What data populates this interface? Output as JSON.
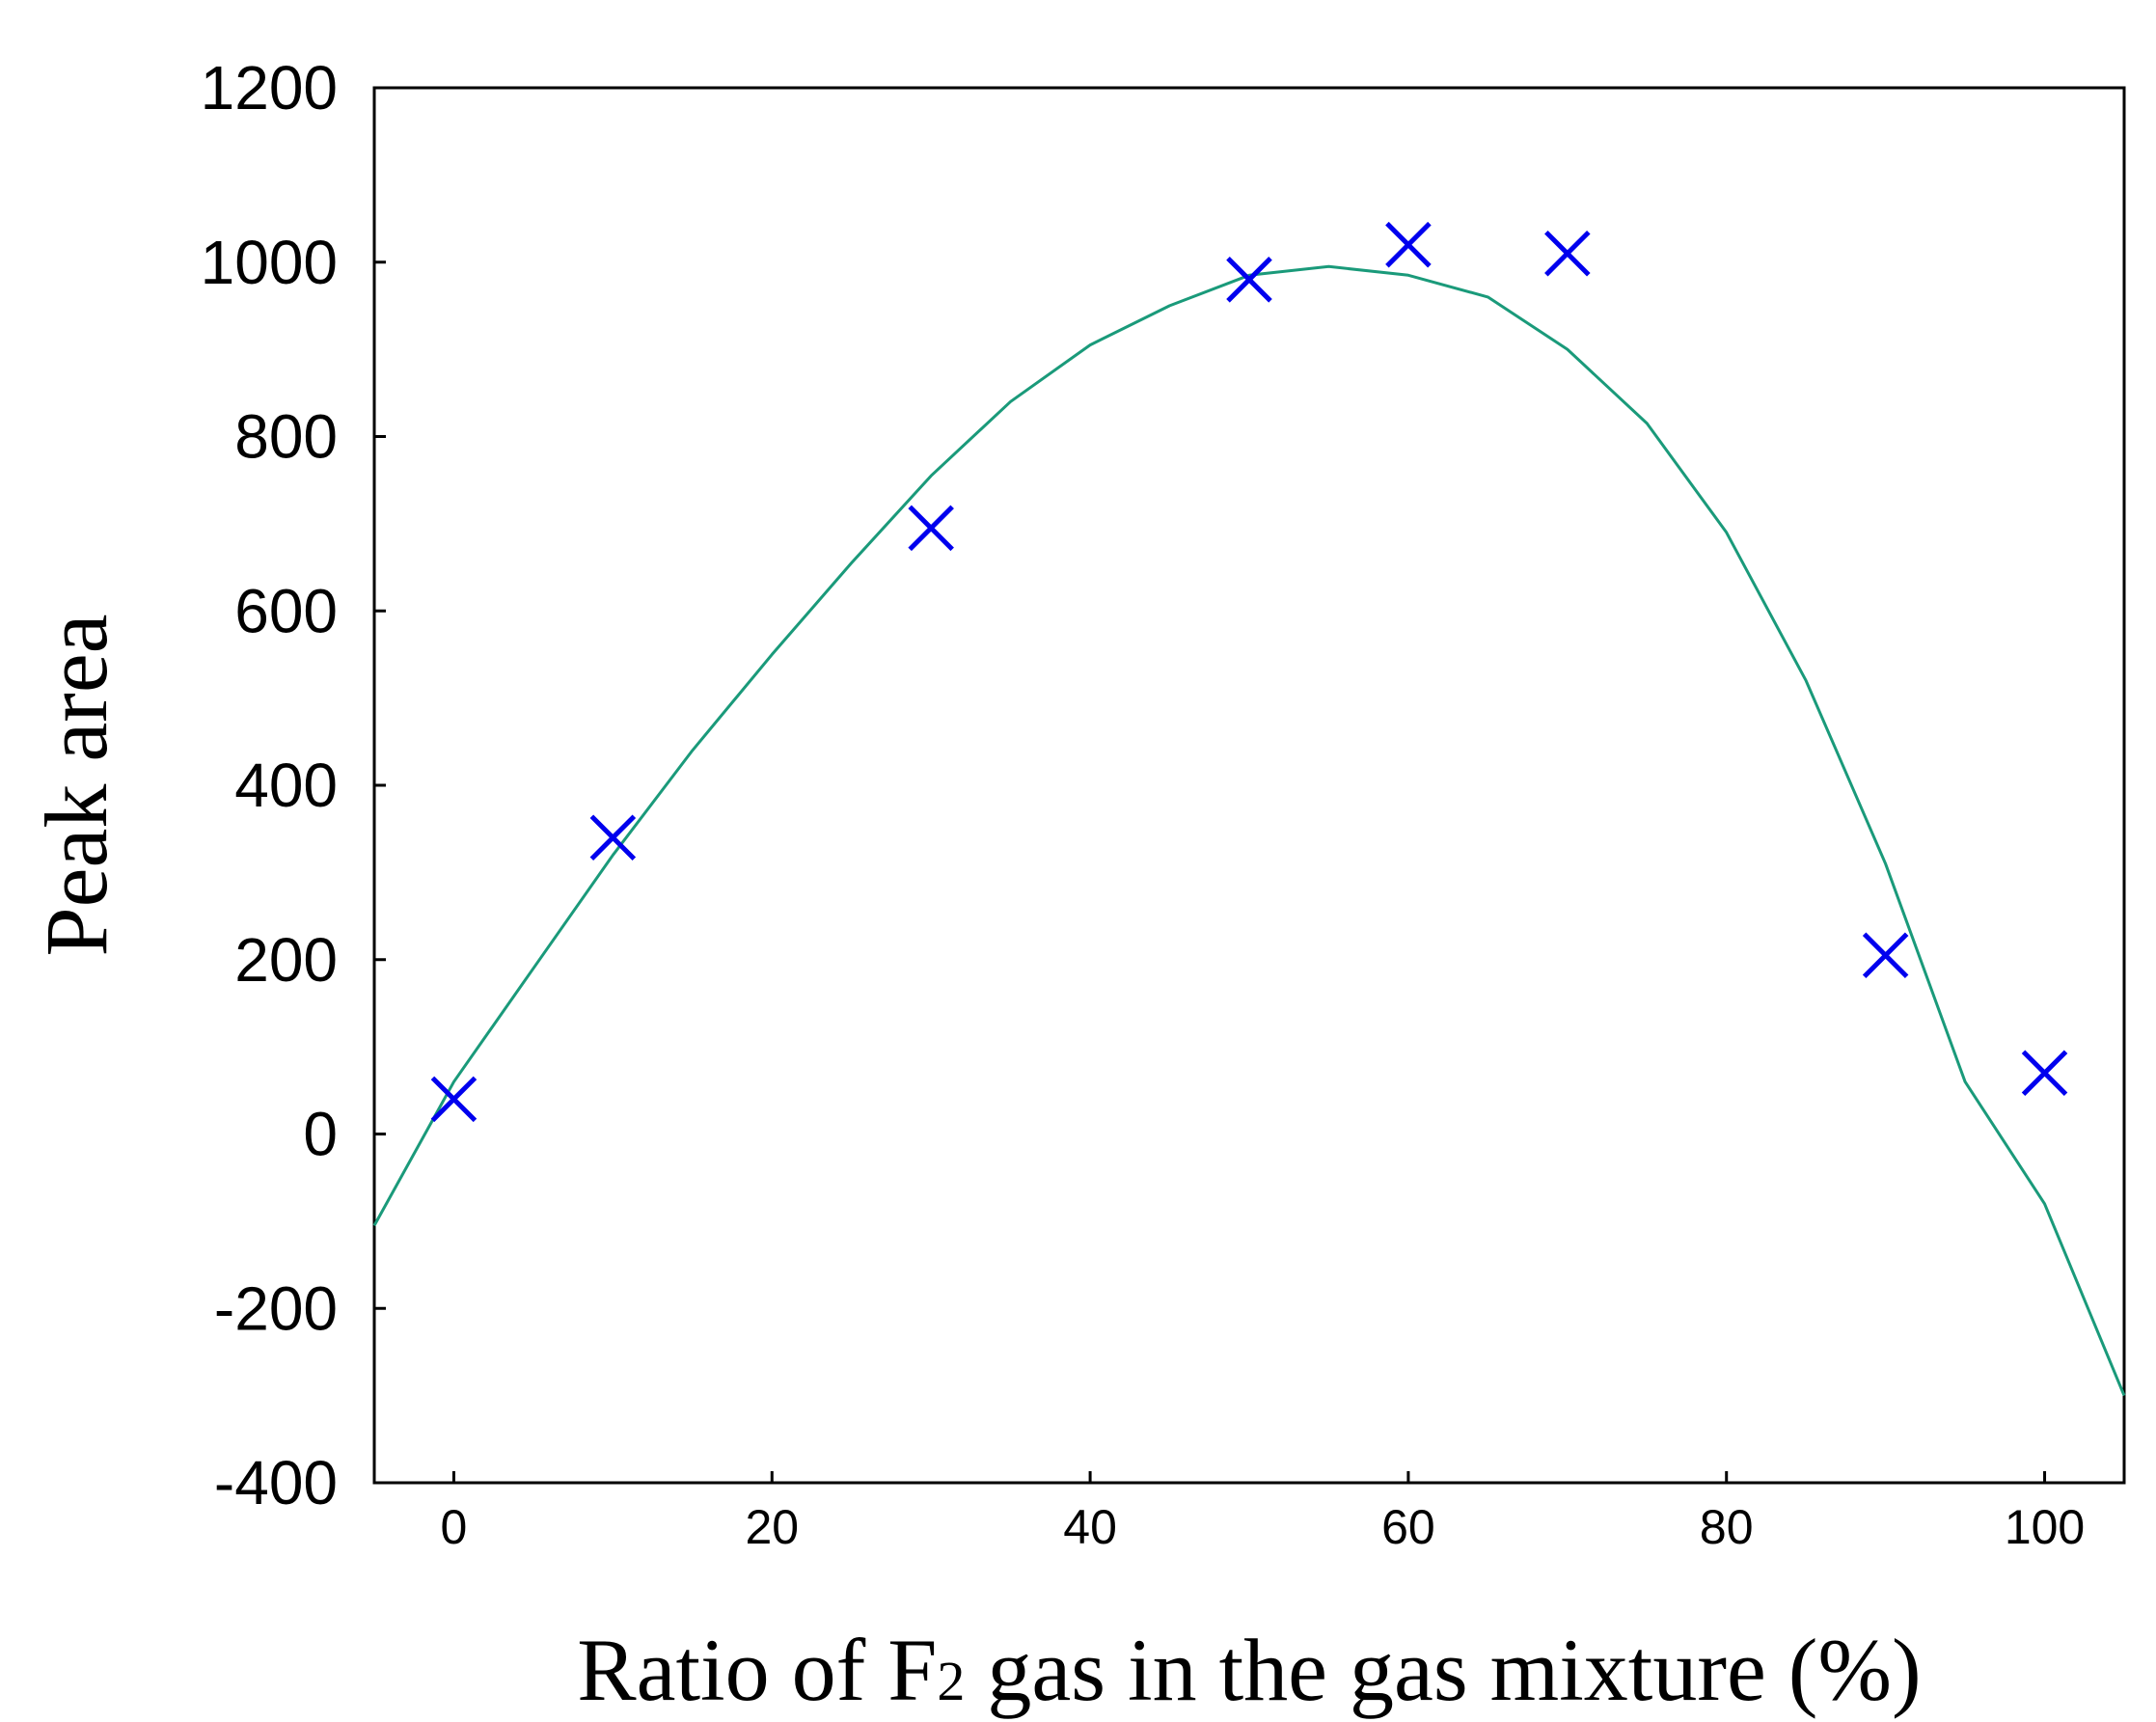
{
  "chart_data": {
    "type": "scatter",
    "xlabel_main": "Ratio of F",
    "xlabel_sub": "2",
    "xlabel_rest": " gas in the gas mixture (%)",
    "ylabel": "Peak area",
    "xlim": [
      -5,
      105
    ],
    "ylim": [
      -400,
      1200
    ],
    "x_ticks": [
      0,
      20,
      40,
      60,
      80,
      100
    ],
    "y_ticks": [
      -400,
      -200,
      0,
      200,
      400,
      600,
      800,
      1000,
      1200
    ],
    "grid": false,
    "series": [
      {
        "type": "scatter",
        "marker": "x",
        "color": "#0000ee",
        "x": [
          0,
          10,
          30,
          50,
          60,
          70,
          90,
          100
        ],
        "y": [
          40,
          340,
          695,
          980,
          1020,
          1010,
          205,
          70
        ]
      },
      {
        "type": "line",
        "color": "#1a9a7a",
        "x": [
          -5,
          0,
          5,
          10,
          15,
          20,
          25,
          30,
          35,
          40,
          45,
          50,
          55,
          60,
          65,
          70,
          75,
          80,
          85,
          90,
          95,
          100,
          105
        ],
        "y": [
          -105,
          60,
          190,
          320,
          440,
          550,
          655,
          755,
          840,
          905,
          950,
          985,
          995,
          985,
          960,
          900,
          815,
          690,
          520,
          310,
          60,
          -80,
          -300
        ]
      }
    ]
  }
}
